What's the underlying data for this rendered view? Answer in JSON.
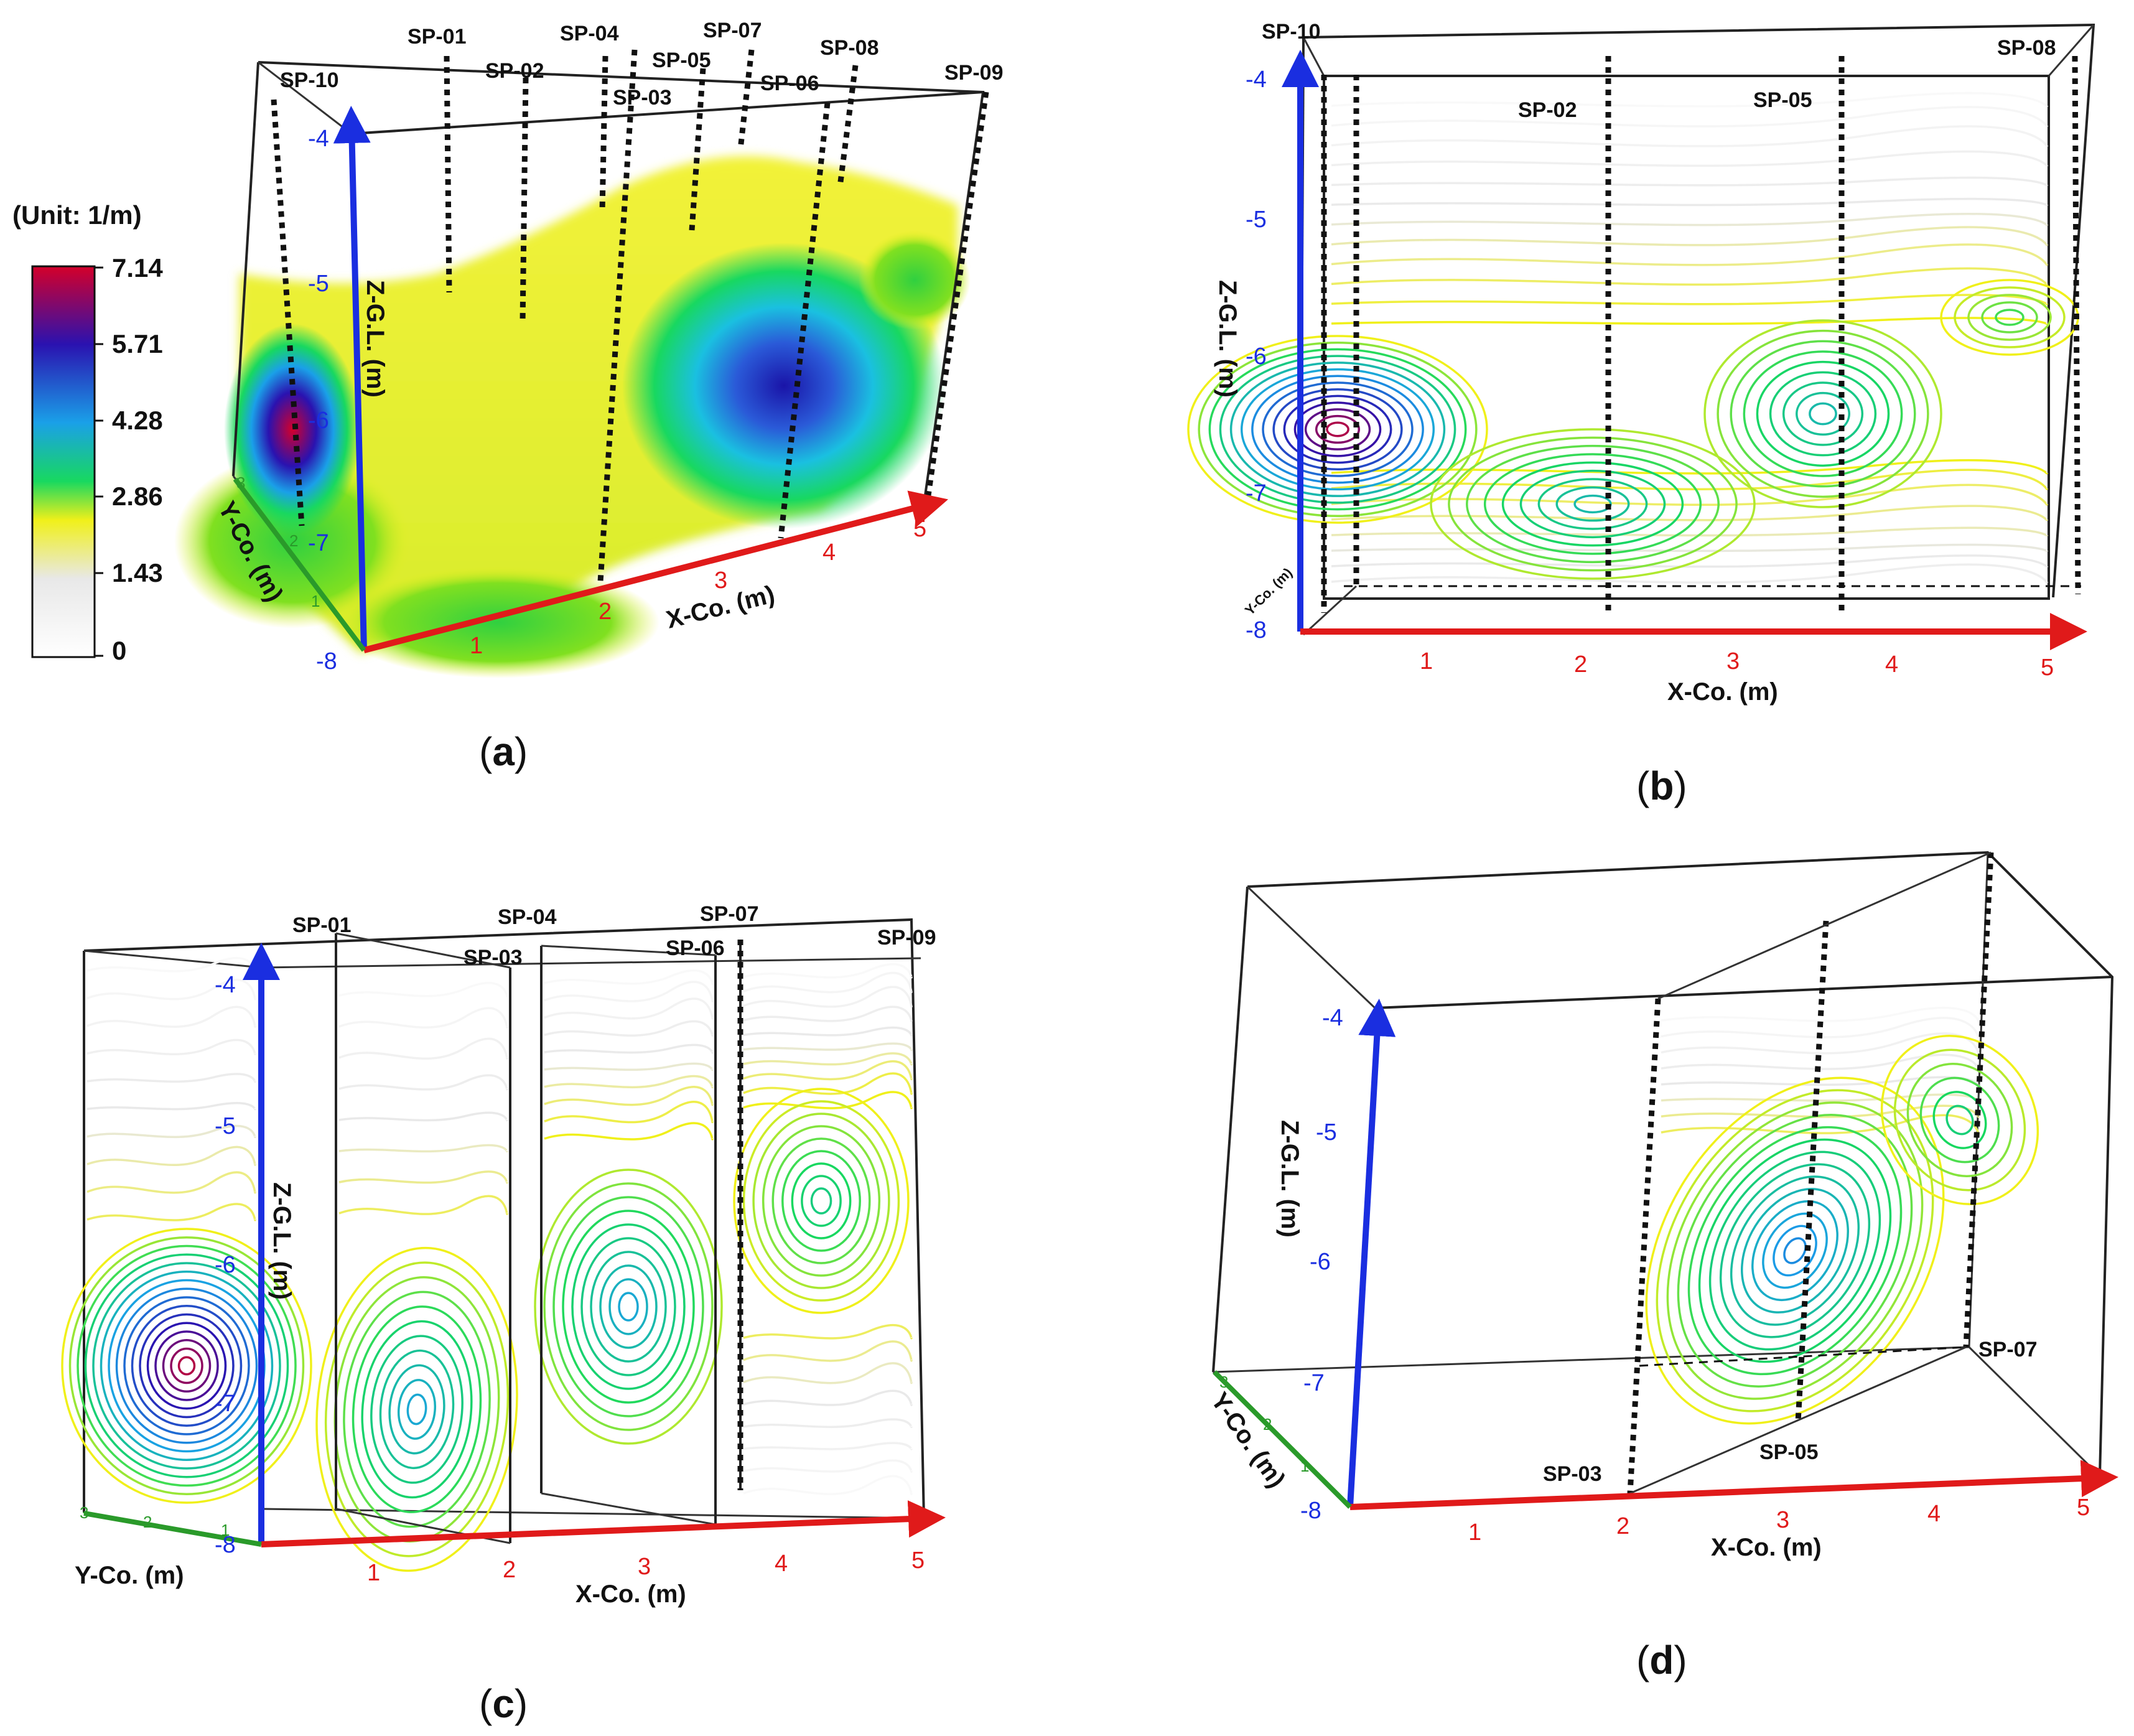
{
  "colorbar": {
    "unit": "(Unit:  1/m)",
    "ticks": [
      "7.14",
      "5.71",
      "4.28",
      "2.86",
      "1.43",
      "0"
    ],
    "colors": [
      "#d4002a",
      "#2a12b0",
      "#1aa0e8",
      "#18d860",
      "#f0f01a",
      "#e8e8e8",
      "#ffffff"
    ]
  },
  "panels": {
    "a": {
      "caption": "a",
      "boreholes": [
        "SP-01",
        "SP-02",
        "SP-03",
        "SP-04",
        "SP-05",
        "SP-06",
        "SP-07",
        "SP-08",
        "SP-09",
        "SP-10"
      ],
      "z_ticks": [
        "-4",
        "-5",
        "-6",
        "-7",
        "-8"
      ],
      "x_ticks": [
        "1",
        "2",
        "3",
        "4",
        "5"
      ],
      "y_ticks": [
        "1",
        "2",
        "3"
      ],
      "z_label": "Z-G.L. (m)",
      "x_label": "X-Co. (m)",
      "y_label": "Y-Co. (m)"
    },
    "b": {
      "caption": "b",
      "boreholes": [
        "SP-10",
        "SP-02",
        "SP-05",
        "SP-08"
      ],
      "z_ticks": [
        "-4",
        "-5",
        "-6",
        "-7",
        "-8"
      ],
      "x_ticks": [
        "1",
        "2",
        "3",
        "4",
        "5"
      ],
      "z_label": "Z-G.L. (m)",
      "x_label": "X-Co. (m)",
      "y_label": "Y-Co. (m)"
    },
    "c": {
      "caption": "c",
      "boreholes": [
        "SP-01",
        "SP-03",
        "SP-04",
        "SP-06",
        "SP-07",
        "SP-09"
      ],
      "z_ticks": [
        "-4",
        "-5",
        "-6",
        "-7",
        "-8"
      ],
      "x_ticks": [
        "1",
        "2",
        "3",
        "4",
        "5"
      ],
      "y_ticks": [
        "1",
        "2",
        "3"
      ],
      "z_label": "Z-G.L. (m)",
      "x_label": "X-Co. (m)",
      "y_label": "Y-Co. (m)"
    },
    "d": {
      "caption": "d",
      "boreholes": [
        "SP-03",
        "SP-05",
        "SP-07"
      ],
      "z_ticks": [
        "-4",
        "-5",
        "-6",
        "-7",
        "-8"
      ],
      "x_ticks": [
        "1",
        "2",
        "3",
        "4",
        "5"
      ],
      "y_ticks": [
        "1",
        "2",
        "3"
      ],
      "z_label": "Z-G.L. (m)",
      "x_label": "X-Co. (m)",
      "y_label": "Y-Co. (m)"
    }
  }
}
